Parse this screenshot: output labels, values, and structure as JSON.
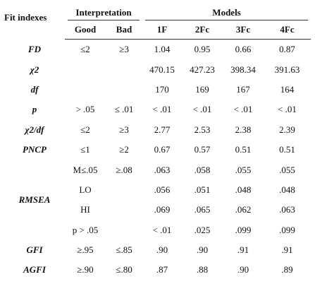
{
  "header": {
    "title": "Fit indexes",
    "groups": [
      "Interpretation",
      "Models"
    ],
    "columns": [
      "Good",
      "Bad",
      "1F",
      "2Fc",
      "3Fc",
      "4Fc"
    ]
  },
  "rows": [
    {
      "label": "FD",
      "cells": [
        "≤2",
        "≥3",
        "1.04",
        "0.95",
        "0.66",
        "0.87"
      ]
    },
    {
      "label": "χ2",
      "cells": [
        null,
        null,
        "470.15",
        "427.23",
        "398.34",
        "391.63"
      ]
    },
    {
      "label": "df",
      "cells": [
        null,
        null,
        "170",
        "169",
        "167",
        "164"
      ]
    },
    {
      "label": "p",
      "cells": [
        "> .05",
        "≤ .01",
        "< .01",
        "< .01",
        "< .01",
        "< .01"
      ]
    },
    {
      "label": "χ2/df",
      "cells": [
        "≤2",
        "≥3",
        "2.77",
        "2.53",
        "2.38",
        "2.39"
      ]
    },
    {
      "label": "PNCP",
      "cells": [
        "≤1",
        "≥2",
        "0.67",
        "0.57",
        "0.51",
        "0.51"
      ]
    },
    {
      "label": "RMSEA",
      "subrows": [
        [
          "M≤.05",
          "≥.08",
          ".063",
          ".058",
          ".055",
          ".055"
        ],
        [
          "LO",
          null,
          ".056",
          ".051",
          ".048",
          ".048"
        ],
        [
          "HI",
          null,
          ".069",
          ".065",
          ".062",
          ".063"
        ],
        [
          "p > .05",
          null,
          "< .01",
          ".025",
          ".099",
          ".099"
        ]
      ]
    },
    {
      "label": "GFI",
      "cells": [
        "≥.95",
        "≤.85",
        ".90",
        ".90",
        ".91",
        ".91"
      ]
    },
    {
      "label": "AGFI",
      "cells": [
        "≥.90",
        "≤.80",
        ".87",
        ".88",
        ".90",
        ".89"
      ]
    }
  ]
}
